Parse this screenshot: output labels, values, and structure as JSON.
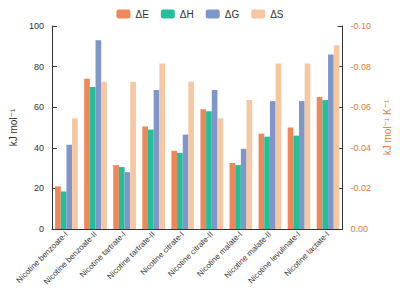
{
  "chart_data": {
    "type": "bar",
    "categories": [
      "Nicotine benzoate-I",
      "Nicotine benzoate-II",
      "Nicotine tartrate-I",
      "Nicotine tartrate-II",
      "Nicotine citrate-I",
      "Nicotine citrate-II",
      "Nicotine malate-I",
      "Nicotine malate-II",
      "Nicotine levulinate-I",
      "Nicotine lactate-I"
    ],
    "series": [
      {
        "name": "ΔE",
        "color": "#F0875A",
        "values": [
          21,
          74,
          31.5,
          50.5,
          38.5,
          59,
          32.5,
          47,
          50,
          65
        ]
      },
      {
        "name": "ΔH",
        "color": "#22BF9B",
        "values": [
          18.5,
          70,
          30.5,
          49,
          37.5,
          58,
          31.5,
          45.5,
          46,
          63.5
        ]
      },
      {
        "name": "ΔG",
        "color": "#7F96C9",
        "values": [
          41.5,
          93,
          28,
          68.5,
          46.5,
          68.5,
          39.5,
          63,
          63,
          86
        ]
      },
      {
        "name": "ΔS",
        "color": "#F6C7A0",
        "axis": "y2",
        "values": [
          -0.0545,
          -0.0725,
          -0.0725,
          -0.0815,
          -0.0725,
          -0.0545,
          -0.0635,
          -0.0815,
          -0.0815,
          -0.0905
        ]
      }
    ],
    "y_label": "kJ mol⁻¹",
    "y2_label": "kJ mol⁻¹ K⁻¹",
    "ylim": [
      0,
      100
    ],
    "yticks": [
      0,
      20,
      40,
      60,
      80,
      100
    ],
    "y2lim": [
      0,
      -0.1
    ],
    "y2ticks": [
      {
        "value": 0,
        "label": "0.00"
      },
      {
        "value": -0.02,
        "label": "-0.02"
      },
      {
        "value": -0.04,
        "label": "-0.04"
      },
      {
        "value": -0.06,
        "label": "-0.06"
      },
      {
        "value": -0.08,
        "label": "-0.08"
      },
      {
        "value": -0.1,
        "label": "-0.10"
      }
    ],
    "legend": "top",
    "grid": false
  }
}
